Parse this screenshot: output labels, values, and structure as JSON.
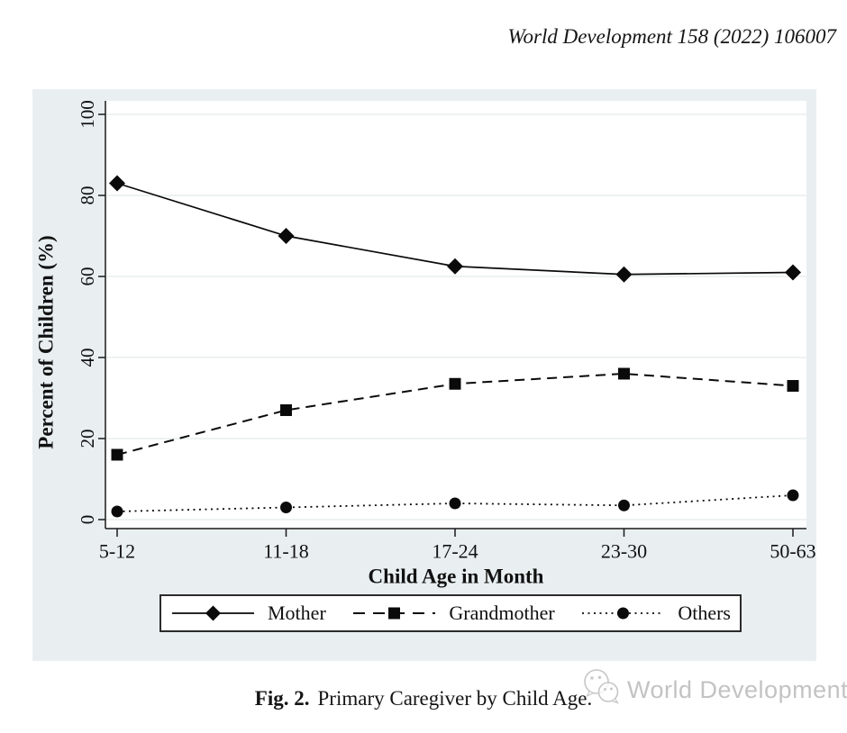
{
  "page": {
    "journal_header": "World Development 158 (2022) 106007",
    "caption": {
      "label": "Fig. 2.",
      "text": "Primary Caregiver by Child Age."
    },
    "watermark_text": "World Development"
  },
  "icons": {
    "watermark_logo": "wechat-bubbles-icon"
  },
  "chart_data": {
    "type": "line",
    "title": "",
    "xlabel": "Child Age in Month",
    "ylabel": "Percent of Children (%)",
    "categories": [
      "5-12",
      "11-18",
      "17-24",
      "23-30",
      "50-63"
    ],
    "series": [
      {
        "name": "Mother",
        "marker": "diamond",
        "line": "solid",
        "values": [
          83,
          70,
          62.5,
          60.5,
          61
        ]
      },
      {
        "name": "Grandmother",
        "marker": "square",
        "line": "dashed",
        "values": [
          16,
          27,
          33.5,
          36,
          33
        ]
      },
      {
        "name": "Others",
        "marker": "circle",
        "line": "dotted",
        "values": [
          2,
          3,
          4,
          3.5,
          6
        ]
      }
    ],
    "ylim": [
      0,
      100
    ],
    "yticks": [
      0,
      20,
      40,
      60,
      80,
      100
    ],
    "grid": true,
    "legend_position": "bottom",
    "colors": {
      "series": "#0a0a0a",
      "figure_bg": "#e9eff1",
      "plot_bg": "#ffffff",
      "grid": "#e3e9eb",
      "axis": "#1a1a1a"
    }
  }
}
